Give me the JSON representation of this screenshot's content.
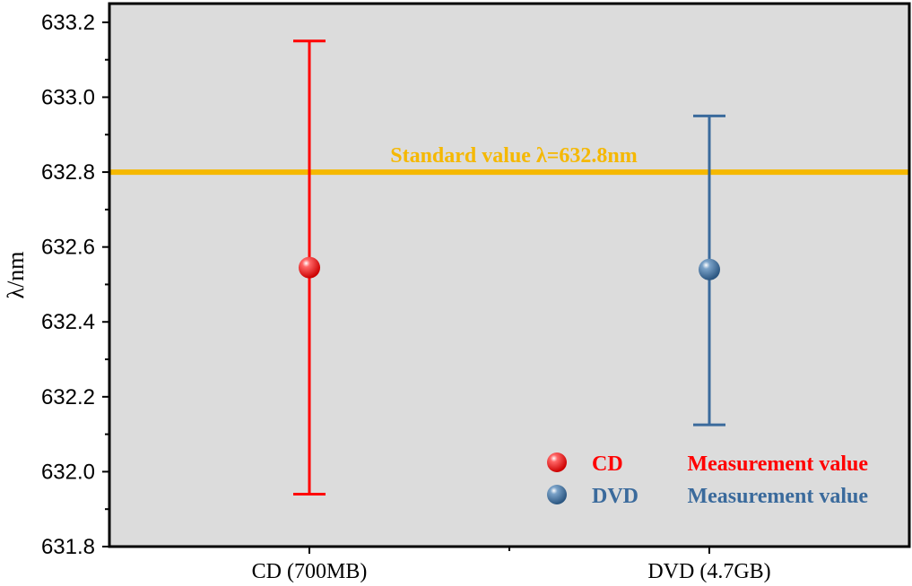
{
  "chart_data": {
    "type": "scatter",
    "ylabel": "λ/nm",
    "xlabel": "",
    "title": "",
    "ylim": [
      631.8,
      633.25
    ],
    "y_ticks": [
      631.8,
      632.0,
      632.2,
      632.4,
      632.6,
      632.8,
      633.0,
      633.2
    ],
    "y_tick_labels": [
      "631.8",
      "632.0",
      "632.2",
      "632.4",
      "632.6",
      "632.8",
      "633.0",
      "633.2"
    ],
    "categories": [
      "CD (700MB)",
      "DVD (4.7GB)"
    ],
    "series": [
      {
        "legend_prefix": "CD",
        "legend_suffix": "Measurement value",
        "category": "CD (700MB)",
        "value": 632.545,
        "err_low": 631.94,
        "err_high": 633.15,
        "color": "#ff0000"
      },
      {
        "legend_prefix": "DVD",
        "legend_suffix": "Measurement value",
        "category": "DVD (4.7GB)",
        "value": 632.54,
        "err_low": 632.125,
        "err_high": 632.95,
        "color": "#3a6a9c"
      }
    ],
    "reference_line": {
      "value": 632.8,
      "label": "Standard value λ=632.8nm",
      "color": "#f5b800"
    },
    "background": "#dcdcdc",
    "grid": false,
    "legend_position": "bottom-right"
  }
}
